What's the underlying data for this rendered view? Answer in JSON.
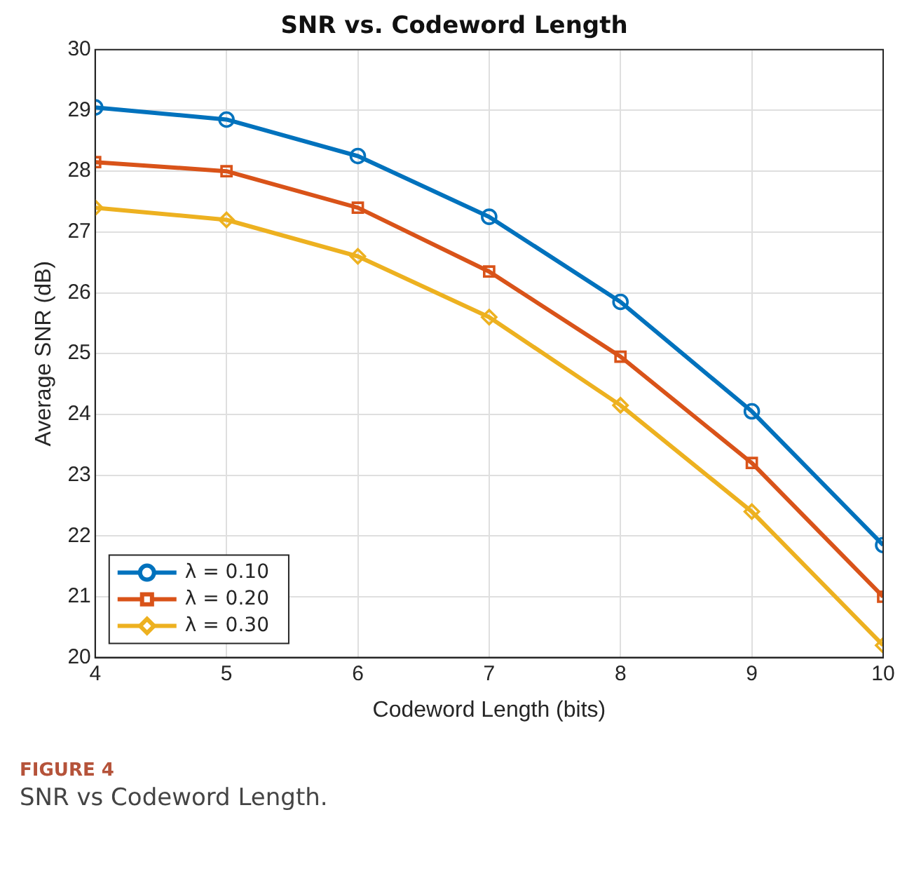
{
  "chart_data": {
    "type": "line",
    "title": "SNR vs. Codeword Length",
    "xlabel": "Codeword Length (bits)",
    "ylabel": "Average SNR (dB)",
    "x": [
      4,
      5,
      6,
      7,
      8,
      9,
      10
    ],
    "series": [
      {
        "name": "λ = 0.10",
        "color": "#0072bd",
        "marker": "circle",
        "values": [
          29.05,
          28.85,
          28.25,
          27.25,
          25.85,
          24.05,
          21.85
        ]
      },
      {
        "name": "λ = 0.20",
        "color": "#d95319",
        "marker": "square",
        "values": [
          28.15,
          28.0,
          27.4,
          26.35,
          24.95,
          23.2,
          21.0
        ]
      },
      {
        "name": "λ = 0.30",
        "color": "#edb120",
        "marker": "diamond",
        "values": [
          27.4,
          27.2,
          26.6,
          25.6,
          24.15,
          22.4,
          20.2
        ]
      }
    ],
    "xlim": [
      4,
      10
    ],
    "xticks": [
      4,
      5,
      6,
      7,
      8,
      9,
      10
    ],
    "ylim": [
      20,
      30
    ],
    "yticks": [
      20,
      21,
      22,
      23,
      24,
      25,
      26,
      27,
      28,
      29,
      30
    ],
    "grid": true,
    "legend": "bottom left",
    "line_style": "solid",
    "annotations": [
      "FIGURE 4",
      "SNR vs Codeword Length."
    ]
  }
}
